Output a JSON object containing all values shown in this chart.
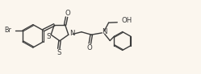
{
  "bg_color": "#fbf6ee",
  "line_color": "#3a3a3a",
  "lw": 1.0,
  "fs": 6.2,
  "xlim": [
    0,
    10.5
  ],
  "ylim": [
    0,
    4.0
  ]
}
